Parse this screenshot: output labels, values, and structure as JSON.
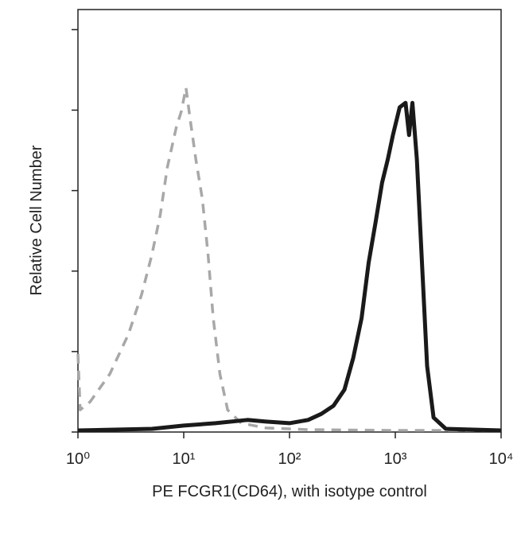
{
  "chart_data": {
    "type": "line",
    "xlabel": "PE FCGR1(CD64), with isotype control",
    "ylabel": "Relative Cell Number",
    "xscale": "log",
    "xlim": [
      1,
      10000
    ],
    "xticks": [
      {
        "value": 1,
        "label": "10⁰"
      },
      {
        "value": 10,
        "label": "10¹"
      },
      {
        "value": 100,
        "label": "10²"
      },
      {
        "value": 1000,
        "label": "10³"
      },
      {
        "value": 10000,
        "label": "10⁴"
      }
    ],
    "ylim": [
      0,
      105
    ],
    "yticks": [
      0,
      20,
      40,
      60,
      80,
      100
    ],
    "series": [
      {
        "color": "#a8a8a8",
        "dash": true,
        "x": [
          1,
          1.05,
          1.3,
          2,
          3,
          4,
          5,
          6,
          7,
          8.5,
          9.5,
          10.5,
          11.5,
          13,
          15,
          17,
          19,
          22,
          26,
          35,
          60,
          150,
          1000,
          10000
        ],
        "values": [
          19.4,
          5.5,
          7.5,
          14.4,
          24.3,
          34.2,
          44.1,
          54,
          65.8,
          75.7,
          79.7,
          85.6,
          77.7,
          67.8,
          57.9,
          44.1,
          28.3,
          14.4,
          5.5,
          2.2,
          1,
          0.6,
          0.4,
          0.4
        ]
      },
      {
        "color": "#1a1a1a",
        "dash": false,
        "x": [
          1,
          5,
          10,
          20,
          40,
          60,
          100,
          150,
          200,
          260,
          330,
          400,
          480,
          560,
          650,
          750,
          850,
          950,
          1100,
          1250,
          1350,
          1450,
          1600,
          1800,
          2000,
          2300,
          3000,
          10000
        ],
        "values": [
          0.4,
          0.8,
          1.6,
          2.2,
          3,
          2.6,
          2.2,
          3,
          4.5,
          6.5,
          10.5,
          18.4,
          28.3,
          42.1,
          52,
          62,
          67.8,
          73.8,
          80.7,
          81.8,
          73.8,
          81.8,
          67.8,
          40.2,
          16.4,
          3.6,
          0.8,
          0.4
        ]
      }
    ]
  }
}
